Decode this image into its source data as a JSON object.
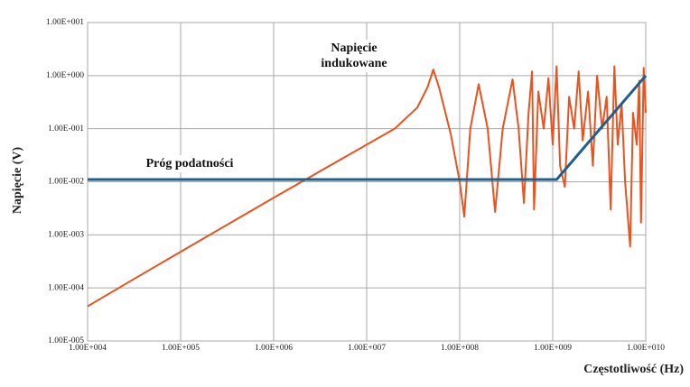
{
  "chart_data": {
    "type": "line",
    "log_x": true,
    "log_y": true,
    "grid": true,
    "xlabel": "Częstotliwość (Hz)",
    "ylabel": "Napięcie (V)",
    "xlim": [
      10000.0,
      10000000000.0
    ],
    "ylim": [
      1e-05,
      10
    ],
    "xticks": [
      {
        "value": 10000.0,
        "label": "1.00E+004"
      },
      {
        "value": 100000.0,
        "label": "1.00E+005"
      },
      {
        "value": 1000000.0,
        "label": "1.00E+006"
      },
      {
        "value": 10000000.0,
        "label": "1.00E+007"
      },
      {
        "value": 100000000.0,
        "label": "1.00E+008"
      },
      {
        "value": 1000000000.0,
        "label": "1.00E+009"
      },
      {
        "value": 10000000000.0,
        "label": "1.00E+010"
      }
    ],
    "yticks": [
      {
        "value": 10,
        "label": "1.00E+001"
      },
      {
        "value": 1,
        "label": "1.00E+000"
      },
      {
        "value": 0.1,
        "label": "1.00E-001"
      },
      {
        "value": 0.01,
        "label": "1.00E-002"
      },
      {
        "value": 0.001,
        "label": "1.00E-003"
      },
      {
        "value": 0.0001,
        "label": "1.00E-004"
      },
      {
        "value": 1e-05,
        "label": "1.00E-005"
      }
    ],
    "series": [
      {
        "name": "Napięcie indukowane",
        "color": "#e8531f",
        "x": [
          10000.0,
          30000.0,
          100000.0,
          1000000.0,
          10000000.0,
          20000000.0,
          35000000.0,
          45000000.0,
          52000000.0,
          60000000.0,
          80000000.0,
          100000000.0,
          112000000.0,
          130000000.0,
          160000000.0,
          200000000.0,
          240000000.0,
          290000000.0,
          370000000.0,
          430000000.0,
          490000000.0,
          550000000.0,
          600000000.0,
          630000000.0,
          700000000.0,
          800000000.0,
          900000000.0,
          1000000000.0,
          1100000000.0,
          1200000000.0,
          1350000000.0,
          1500000000.0,
          1700000000.0,
          1900000000.0,
          2100000000.0,
          2400000000.0,
          2700000000.0,
          3000000000.0,
          3400000000.0,
          3800000000.0,
          4200000000.0,
          4600000000.0,
          5000000000.0,
          5500000000.0,
          6000000000.0,
          6800000000.0,
          7300000000.0,
          8000000000.0,
          8500000000.0,
          8900000000.0,
          9500000000.0,
          10000000000.0
        ],
        "values": [
          4.5e-05,
          0.00014,
          0.00048,
          0.005,
          0.05,
          0.1,
          0.25,
          0.6,
          1.3,
          0.6,
          0.08,
          0.01,
          0.0022,
          0.1,
          0.69,
          0.1,
          0.0027,
          0.1,
          0.85,
          0.1,
          0.004,
          0.2,
          1.2,
          0.003,
          0.5,
          0.1,
          0.9,
          0.05,
          1.5,
          0.02,
          0.008,
          0.4,
          0.1,
          1.2,
          0.06,
          0.5,
          0.02,
          1.0,
          0.1,
          0.4,
          0.003,
          1.5,
          0.05,
          0.3,
          0.01,
          0.0006,
          0.2,
          0.05,
          0.8,
          0.0017,
          1.4,
          0.2
        ]
      },
      {
        "name": "Próg podatności",
        "color": "#1f5f8b",
        "x": [
          10000.0,
          1100000000.0,
          10000000000.0
        ],
        "values": [
          0.011,
          0.011,
          1
        ]
      }
    ]
  }
}
